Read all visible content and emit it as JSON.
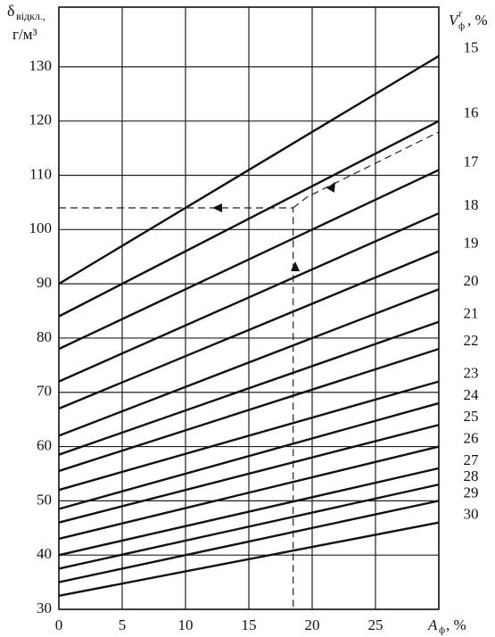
{
  "chart_data": {
    "type": "line",
    "y_label": {
      "symbol": "δ",
      "subscript": "відкл.,",
      "unit": "г/м³"
    },
    "x_label": {
      "symbol": "A",
      "subscript": "ф",
      "unit": ", %"
    },
    "legend_title": {
      "symbol": "V",
      "subscript": "ф",
      "superscript": "г",
      "unit": ", %"
    },
    "x": [
      0,
      30
    ],
    "series": [
      {
        "name": "15",
        "color": "#111",
        "values": [
          90,
          132
        ]
      },
      {
        "name": "16",
        "color": "#111",
        "values": [
          84,
          120
        ]
      },
      {
        "name": "17",
        "color": "#111",
        "values": [
          78,
          111
        ]
      },
      {
        "name": "18",
        "color": "#111",
        "values": [
          72,
          103
        ]
      },
      {
        "name": "19",
        "color": "#111",
        "values": [
          67,
          96
        ]
      },
      {
        "name": "20",
        "color": "#111",
        "values": [
          62,
          89
        ]
      },
      {
        "name": "21",
        "color": "#111",
        "values": [
          58.5,
          83
        ]
      },
      {
        "name": "22",
        "color": "#111",
        "values": [
          55.5,
          78
        ]
      },
      {
        "name": "23",
        "color": "#111",
        "values": [
          52,
          72
        ]
      },
      {
        "name": "24",
        "color": "#111",
        "values": [
          48.5,
          68
        ]
      },
      {
        "name": "25",
        "color": "#111",
        "values": [
          46,
          64
        ]
      },
      {
        "name": "26",
        "color": "#111",
        "values": [
          43,
          60
        ]
      },
      {
        "name": "27",
        "color": "#111",
        "values": [
          40,
          56
        ]
      },
      {
        "name": "28",
        "color": "#111",
        "values": [
          37.5,
          53
        ]
      },
      {
        "name": "29",
        "color": "#111",
        "values": [
          35,
          50
        ]
      },
      {
        "name": "30",
        "color": "#111",
        "values": [
          32.5,
          46
        ]
      }
    ],
    "guides": [
      {
        "x": [
          0,
          18.5,
          18.5
        ],
        "values": [
          104,
          104,
          30
        ]
      },
      {
        "x": [
          18.5,
          19.6,
          30
        ],
        "values": [
          104,
          106,
          118
        ]
      }
    ],
    "xlim": [
      0,
      30
    ],
    "ylim": [
      30,
      141
    ],
    "xticks": [
      0,
      5,
      10,
      15,
      20,
      25
    ],
    "yticks": [
      30,
      40,
      50,
      60,
      70,
      80,
      90,
      100,
      110,
      120,
      130
    ],
    "grid": true
  }
}
